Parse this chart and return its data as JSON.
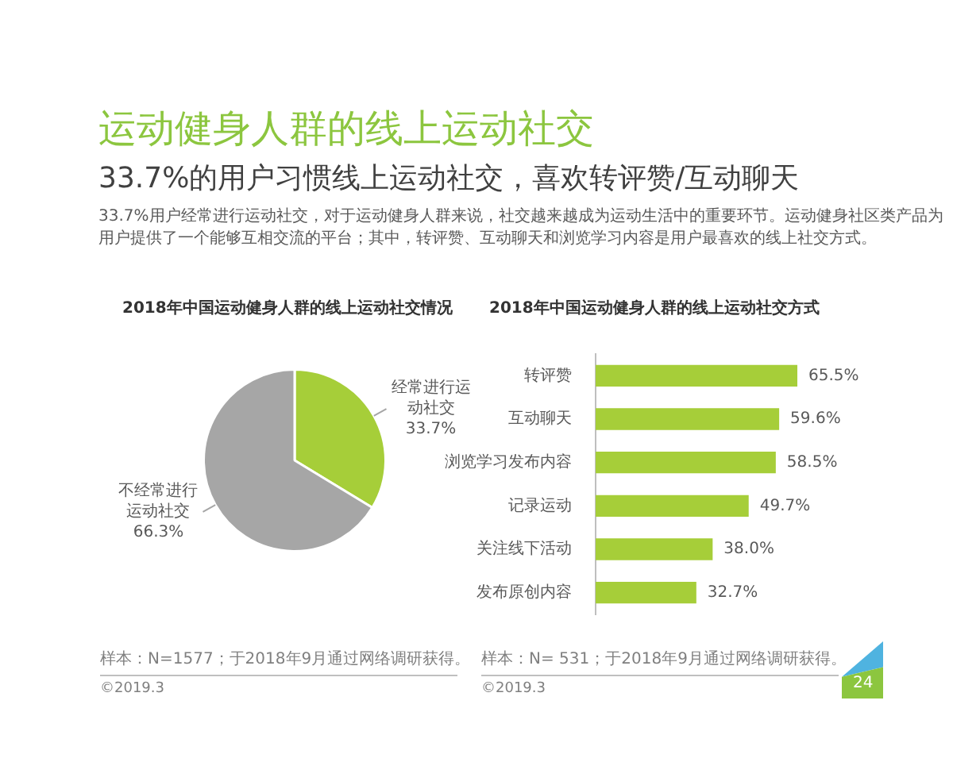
{
  "chart_data": [
    {
      "type": "other",
      "title": "运动健身人群的线上运动社交",
      "subtitle": "33.7%的用户习惯线上运动社交，喜欢转评赞/互动聊天",
      "annotations": [
        "33.7%用户经常进行运动社交，对于运动健身人群来说，社交越来越成为运动生活中的重要环节。运动健身社区类产品为用户提供了一个能够互相交流的平台；其中，转评赞、互动聊天和浏览学习内容是用户最喜欢的线上社交方式。",
        "24"
      ]
    },
    {
      "type": "pie",
      "title": "2018年中国运动健身人群的线上运动社交情况",
      "categories": [
        "经常进行运动社交",
        "不经常进行运动社交"
      ],
      "values": [
        33.7,
        66.3
      ],
      "colors": [
        "#a6ce39",
        "#a6a6a6"
      ],
      "value_labels": [
        "33.7%",
        "66.3%"
      ],
      "annotations": [
        "样本：N=1577；于2018年9月通过网络调研获得。",
        "©2019.3"
      ]
    },
    {
      "type": "bar",
      "orientation": "horizontal",
      "title": "2018年中国运动健身人群的线上运动社交方式",
      "categories": [
        "转评赞",
        "互动聊天",
        "浏览学习发布内容",
        "记录运动",
        "关注线下活动",
        "发布原创内容"
      ],
      "values": [
        65.5,
        59.6,
        58.5,
        49.7,
        38.0,
        32.7
      ],
      "color": "#a6ce39",
      "value_labels": [
        "65.5%",
        "59.6%",
        "58.5%",
        "49.7%",
        "38.0%",
        "32.7%"
      ],
      "tick_labels": "y",
      "annotations": [
        "样本：N= 531；于2018年9月通过网络调研获得。",
        "©2019.3"
      ]
    }
  ]
}
